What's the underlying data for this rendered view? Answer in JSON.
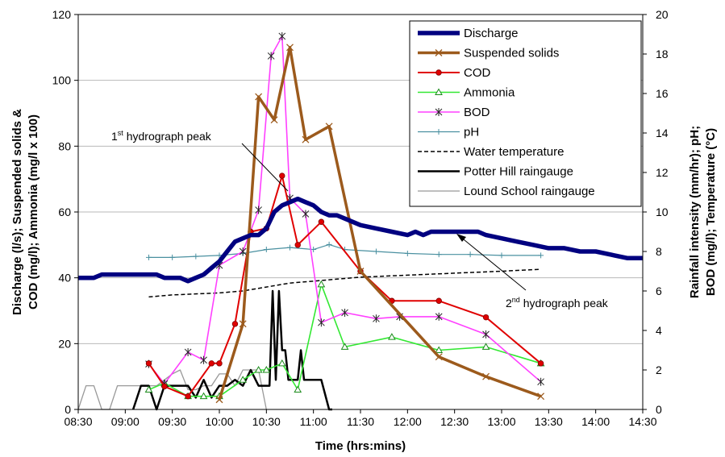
{
  "chart_data": {
    "type": "line",
    "xlabel": "Time (hrs:mins)",
    "ylabel_left": [
      "Discharge (l/s); Suspended solids &",
      "COD (mg/l); Ammonia (mg/l x 100)"
    ],
    "ylabel_right": [
      "Rainfall intensity (mm/hr); pH;",
      "BOD (mg/l); Temperature (°C)"
    ],
    "xlim": [
      "08:30",
      "14:30"
    ],
    "ylim_left": [
      0,
      120
    ],
    "ylim_right": [
      0,
      20
    ],
    "x_ticks": [
      "08:30",
      "09:00",
      "09:30",
      "10:00",
      "10:30",
      "11:00",
      "11:30",
      "12:00",
      "12:30",
      "13:00",
      "13:30",
      "14:00",
      "14:30"
    ],
    "yleft_ticks": [
      "0",
      "20",
      "40",
      "60",
      "80",
      "100",
      "120"
    ],
    "yright_ticks": [
      "0",
      "2",
      "4",
      "6",
      "8",
      "10",
      "12",
      "14",
      "16",
      "18",
      "20"
    ],
    "annotations": [
      {
        "id": "peak1",
        "text": "hydrograph peak",
        "number": "1",
        "superscript": "st"
      },
      {
        "id": "peak2",
        "text": "hydrograph peak",
        "number": "2",
        "superscript": "nd"
      }
    ],
    "series": [
      {
        "id": "discharge",
        "name": "Discharge",
        "axis": "left",
        "color": "#000080",
        "x": [
          "08:30",
          "08:40",
          "08:45",
          "09:00",
          "09:10",
          "09:20",
          "09:25",
          "09:30",
          "09:35",
          "09:40",
          "09:45",
          "09:50",
          "09:55",
          "10:00",
          "10:05",
          "10:10",
          "10:15",
          "10:20",
          "10:25",
          "10:30",
          "10:35",
          "10:40",
          "10:45",
          "10:50",
          "10:55",
          "11:00",
          "11:05",
          "11:10",
          "11:15",
          "11:20",
          "11:30",
          "11:40",
          "11:50",
          "12:00",
          "12:05",
          "12:10",
          "12:15",
          "12:20",
          "12:30",
          "12:40",
          "12:45",
          "12:50",
          "13:00",
          "13:10",
          "13:20",
          "13:30",
          "13:40",
          "13:50",
          "14:00",
          "14:10",
          "14:20",
          "14:30"
        ],
        "y": [
          40,
          40,
          41,
          41,
          41,
          41,
          40,
          40,
          40,
          39,
          40,
          41,
          43,
          45,
          48,
          51,
          52,
          53,
          53,
          55,
          60,
          62,
          63,
          64,
          63,
          62,
          60,
          59,
          59,
          58,
          56,
          55,
          54,
          53,
          54,
          53,
          54,
          54,
          54,
          54,
          54,
          53,
          52,
          51,
          50,
          49,
          49,
          48,
          48,
          47,
          46,
          46
        ]
      },
      {
        "id": "ss",
        "name": "Suspended solids",
        "axis": "left",
        "color": "#9C5A1C",
        "x": [
          "10:00",
          "10:15",
          "10:25",
          "10:35",
          "10:45",
          "10:55",
          "11:10",
          "11:30",
          "12:20",
          "12:50",
          "13:25"
        ],
        "y": [
          3,
          26,
          95,
          88,
          110,
          82,
          86,
          42,
          16,
          10,
          4
        ]
      },
      {
        "id": "cod",
        "name": "COD",
        "axis": "left",
        "color": "#E00000",
        "x": [
          "09:15",
          "09:25",
          "09:40",
          "09:55",
          "10:00",
          "10:10",
          "10:20",
          "10:30",
          "10:40",
          "10:50",
          "11:05",
          "11:30",
          "11:50",
          "12:20",
          "12:50",
          "13:25"
        ],
        "y": [
          14,
          7,
          4,
          14,
          14,
          26,
          54,
          55,
          71,
          50,
          57,
          42,
          33,
          33,
          28,
          14
        ]
      },
      {
        "id": "ammonia",
        "name": "Ammonia",
        "axis": "left",
        "color": "#33E833",
        "x": [
          "09:15",
          "09:25",
          "09:40",
          "09:50",
          "10:00",
          "10:15",
          "10:25",
          "10:30",
          "10:40",
          "10:50",
          "11:05",
          "11:20",
          "11:50",
          "12:20",
          "12:50",
          "13:25"
        ],
        "y": [
          6,
          8,
          4,
          4,
          4,
          9,
          12,
          12,
          14,
          6,
          38,
          19,
          22,
          18,
          19,
          14
        ]
      },
      {
        "id": "bod",
        "name": "BOD",
        "axis": "right",
        "color": "#FF40FF",
        "x": [
          "09:15",
          "09:25",
          "09:40",
          "09:50",
          "10:00",
          "10:15",
          "10:25",
          "10:33",
          "10:40",
          "10:45",
          "10:55",
          "11:05",
          "11:20",
          "11:40",
          "11:55",
          "12:20",
          "12:50",
          "13:25"
        ],
        "y": [
          2.3,
          1.3,
          2.9,
          2.5,
          7.3,
          8.0,
          10.1,
          17.9,
          18.9,
          10.7,
          9.9,
          4.4,
          4.9,
          4.6,
          4.7,
          4.7,
          3.8,
          1.4
        ]
      },
      {
        "id": "ph",
        "name": "pH",
        "axis": "right",
        "color": "#4A90A0",
        "x": [
          "09:15",
          "09:30",
          "09:45",
          "10:00",
          "10:15",
          "10:30",
          "10:45",
          "11:00",
          "11:10",
          "11:20",
          "11:40",
          "12:00",
          "12:20",
          "12:40",
          "13:00",
          "13:25"
        ],
        "y": [
          7.7,
          7.7,
          7.75,
          7.8,
          7.9,
          8.1,
          8.2,
          8.1,
          8.35,
          8.1,
          8.0,
          7.9,
          7.85,
          7.85,
          7.8,
          7.8
        ]
      },
      {
        "id": "temp",
        "name": "Water temperature",
        "axis": "right",
        "color": "#000000",
        "x": [
          "09:15",
          "09:30",
          "10:00",
          "10:15",
          "10:30",
          "10:45",
          "11:00",
          "11:15",
          "11:30",
          "12:00",
          "12:30",
          "13:00",
          "13:25"
        ],
        "y": [
          5.7,
          5.8,
          5.9,
          6.0,
          6.2,
          6.4,
          6.5,
          6.6,
          6.7,
          6.8,
          6.9,
          7.0,
          7.1
        ]
      },
      {
        "id": "potter",
        "name": "Potter Hill raingauge",
        "axis": "right",
        "color": "#000000",
        "x": [
          "09:05",
          "09:10",
          "09:15",
          "09:20",
          "09:25",
          "09:30",
          "09:35",
          "09:40",
          "09:45",
          "09:50",
          "09:55",
          "10:00",
          "10:05",
          "10:10",
          "10:15",
          "10:20",
          "10:25",
          "10:30",
          "10:32",
          "10:34",
          "10:36",
          "10:38",
          "10:40",
          "10:42",
          "10:44",
          "10:46",
          "10:48",
          "10:50",
          "10:52",
          "10:54",
          "10:56",
          "10:58",
          "11:00",
          "11:02",
          "11:05",
          "11:10",
          "11:12"
        ],
        "y": [
          0,
          1.2,
          1.2,
          0,
          1.2,
          1.2,
          1.2,
          1.2,
          0.6,
          1.5,
          0.6,
          1.2,
          1.2,
          1.5,
          1.2,
          2.0,
          1.2,
          1.2,
          1.2,
          6.0,
          1.5,
          6.0,
          3.0,
          3.0,
          1.5,
          1.5,
          1.5,
          1.5,
          3.0,
          1.5,
          1.5,
          1.5,
          1.5,
          1.5,
          1.5,
          0,
          0
        ]
      },
      {
        "id": "lound",
        "name": "Lound School raingauge",
        "axis": "right",
        "color": "#999999",
        "x": [
          "08:30",
          "08:35",
          "08:40",
          "08:45",
          "08:50",
          "08:55",
          "09:00",
          "09:05",
          "09:10",
          "09:15",
          "09:20",
          "09:25",
          "09:30",
          "09:35",
          "09:40",
          "09:45",
          "09:50",
          "09:55",
          "10:00",
          "10:05",
          "10:10",
          "10:15",
          "10:20",
          "10:25",
          "10:30"
        ],
        "y": [
          0,
          1.2,
          1.2,
          0,
          0,
          1.2,
          1.2,
          1.2,
          1.2,
          1.2,
          1.2,
          1.5,
          1.8,
          2.0,
          1.0,
          1.0,
          1.2,
          1.2,
          1.8,
          1.8,
          1.2,
          2.0,
          2.0,
          2.0,
          0
        ]
      }
    ],
    "legend_position": "top-right",
    "grid": "horizontal"
  }
}
